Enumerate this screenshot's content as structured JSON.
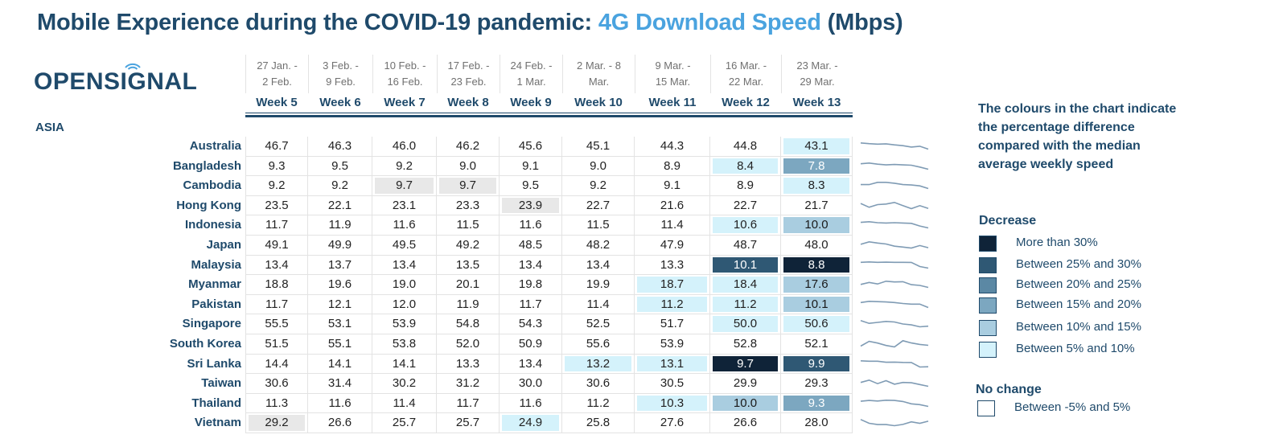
{
  "title": {
    "part1": "Mobile Experience during the COVID-19 pandemic: ",
    "highlight": "4G Download Speed",
    "part2": " (Mbps)"
  },
  "logo": {
    "text": "OPENSIGNAL"
  },
  "region": "ASIA",
  "weeks": [
    {
      "dates": "27 Jan. -\n2 Feb.",
      "label": "Week 5"
    },
    {
      "dates": "3 Feb. -\n9 Feb.",
      "label": "Week 6"
    },
    {
      "dates": "10 Feb. -\n16 Feb.",
      "label": "Week 7"
    },
    {
      "dates": "17 Feb. -\n23 Feb.",
      "label": "Week 8"
    },
    {
      "dates": "24 Feb. -\n1 Mar.",
      "label": "Week 9"
    },
    {
      "dates": "2 Mar. - 8\nMar.",
      "label": "Week 10"
    },
    {
      "dates": "9 Mar. -\n15 Mar.",
      "label": "Week 11"
    },
    {
      "dates": "16 Mar. -\n22 Mar.",
      "label": "Week 12"
    },
    {
      "dates": "23 Mar. -\n29 Mar.",
      "label": "Week 13"
    }
  ],
  "rows": [
    {
      "country": "Australia",
      "values": [
        "46.7",
        "46.3",
        "46.0",
        "46.2",
        "45.6",
        "45.1",
        "44.3",
        "44.8",
        "43.1"
      ],
      "shades": [
        "",
        "",
        "",
        "",
        "",
        "",
        "",
        "",
        "l1"
      ]
    },
    {
      "country": "Bangladesh",
      "values": [
        "9.3",
        "9.5",
        "9.2",
        "9.0",
        "9.1",
        "9.0",
        "8.9",
        "8.4",
        "7.8"
      ],
      "shades": [
        "",
        "",
        "",
        "",
        "",
        "",
        "",
        "l1",
        "l3"
      ]
    },
    {
      "country": "Cambodia",
      "values": [
        "9.2",
        "9.2",
        "9.7",
        "9.7",
        "9.5",
        "9.2",
        "9.1",
        "8.9",
        "8.3"
      ],
      "shades": [
        "",
        "",
        "gray",
        "gray",
        "",
        "",
        "",
        "",
        "l1"
      ]
    },
    {
      "country": "Hong Kong",
      "values": [
        "23.5",
        "22.1",
        "23.1",
        "23.3",
        "23.9",
        "22.7",
        "21.6",
        "22.7",
        "21.7"
      ],
      "shades": [
        "",
        "",
        "",
        "",
        "gray",
        "",
        "",
        "",
        ""
      ]
    },
    {
      "country": "Indonesia",
      "values": [
        "11.7",
        "11.9",
        "11.6",
        "11.5",
        "11.6",
        "11.5",
        "11.4",
        "10.6",
        "10.0"
      ],
      "shades": [
        "",
        "",
        "",
        "",
        "",
        "",
        "",
        "l1",
        "l2"
      ]
    },
    {
      "country": "Japan",
      "values": [
        "49.1",
        "49.9",
        "49.5",
        "49.2",
        "48.5",
        "48.2",
        "47.9",
        "48.7",
        "48.0"
      ],
      "shades": [
        "",
        "",
        "",
        "",
        "",
        "",
        "",
        "",
        ""
      ]
    },
    {
      "country": "Malaysia",
      "values": [
        "13.4",
        "13.7",
        "13.4",
        "13.5",
        "13.4",
        "13.4",
        "13.3",
        "10.1",
        "8.8"
      ],
      "shades": [
        "",
        "",
        "",
        "",
        "",
        "",
        "",
        "l5",
        "l6"
      ]
    },
    {
      "country": "Myanmar",
      "values": [
        "18.8",
        "19.6",
        "19.0",
        "20.1",
        "19.8",
        "19.9",
        "18.7",
        "18.4",
        "17.6"
      ],
      "shades": [
        "",
        "",
        "",
        "",
        "",
        "",
        "l1",
        "l1",
        "l2"
      ]
    },
    {
      "country": "Pakistan",
      "values": [
        "11.7",
        "12.1",
        "12.0",
        "11.9",
        "11.7",
        "11.4",
        "11.2",
        "11.2",
        "10.1"
      ],
      "shades": [
        "",
        "",
        "",
        "",
        "",
        "",
        "l1",
        "l1",
        "l2"
      ]
    },
    {
      "country": "Singapore",
      "values": [
        "55.5",
        "53.1",
        "53.9",
        "54.8",
        "54.3",
        "52.5",
        "51.7",
        "50.0",
        "50.6"
      ],
      "shades": [
        "",
        "",
        "",
        "",
        "",
        "",
        "",
        "l1",
        "l1"
      ]
    },
    {
      "country": "South Korea",
      "values": [
        "51.5",
        "55.1",
        "53.8",
        "52.0",
        "50.9",
        "55.6",
        "53.9",
        "52.8",
        "52.1"
      ],
      "shades": [
        "",
        "",
        "",
        "",
        "",
        "",
        "",
        "",
        ""
      ]
    },
    {
      "country": "Sri Lanka",
      "values": [
        "14.4",
        "14.1",
        "14.1",
        "13.3",
        "13.4",
        "13.2",
        "13.1",
        "9.7",
        "9.9"
      ],
      "shades": [
        "",
        "",
        "",
        "",
        "",
        "l1",
        "l1",
        "l6",
        "l5"
      ]
    },
    {
      "country": "Taiwan",
      "values": [
        "30.6",
        "31.4",
        "30.2",
        "31.2",
        "30.0",
        "30.6",
        "30.5",
        "29.9",
        "29.3"
      ],
      "shades": [
        "",
        "",
        "",
        "",
        "",
        "",
        "",
        "",
        ""
      ]
    },
    {
      "country": "Thailand",
      "values": [
        "11.3",
        "11.6",
        "11.4",
        "11.7",
        "11.6",
        "11.2",
        "10.3",
        "10.0",
        "9.3"
      ],
      "shades": [
        "",
        "",
        "",
        "",
        "",
        "",
        "l1",
        "l2",
        "l3"
      ]
    },
    {
      "country": "Vietnam",
      "values": [
        "29.2",
        "26.6",
        "25.7",
        "25.7",
        "24.9",
        "25.8",
        "27.6",
        "26.6",
        "28.0"
      ],
      "shades": [
        "gray",
        "",
        "",
        "",
        "l1",
        "",
        "",
        "",
        ""
      ]
    }
  ],
  "legend": {
    "note": "The colours in the chart indicate the percentage difference compared with the median average weekly speed",
    "decrease_heading": "Decrease",
    "items": [
      {
        "label": "More than 30%",
        "color": "#0f2338"
      },
      {
        "label": "Between 25% and 30%",
        "color": "#2f5874"
      },
      {
        "label": "Between 20% and 25%",
        "color": "#5b88a4"
      },
      {
        "label": "Between 15% and 20%",
        "color": "#7ca7c0"
      },
      {
        "label": "Between 10% and 15%",
        "color": "#a9cde0"
      },
      {
        "label": "Between 5% and 10%",
        "color": "#d4f2fb"
      }
    ],
    "nochange_heading": "No change",
    "nochange_label": "Between -5% and 5%"
  },
  "colors": {
    "brand": "#1f4a6b",
    "highlight": "#4aa3df"
  }
}
